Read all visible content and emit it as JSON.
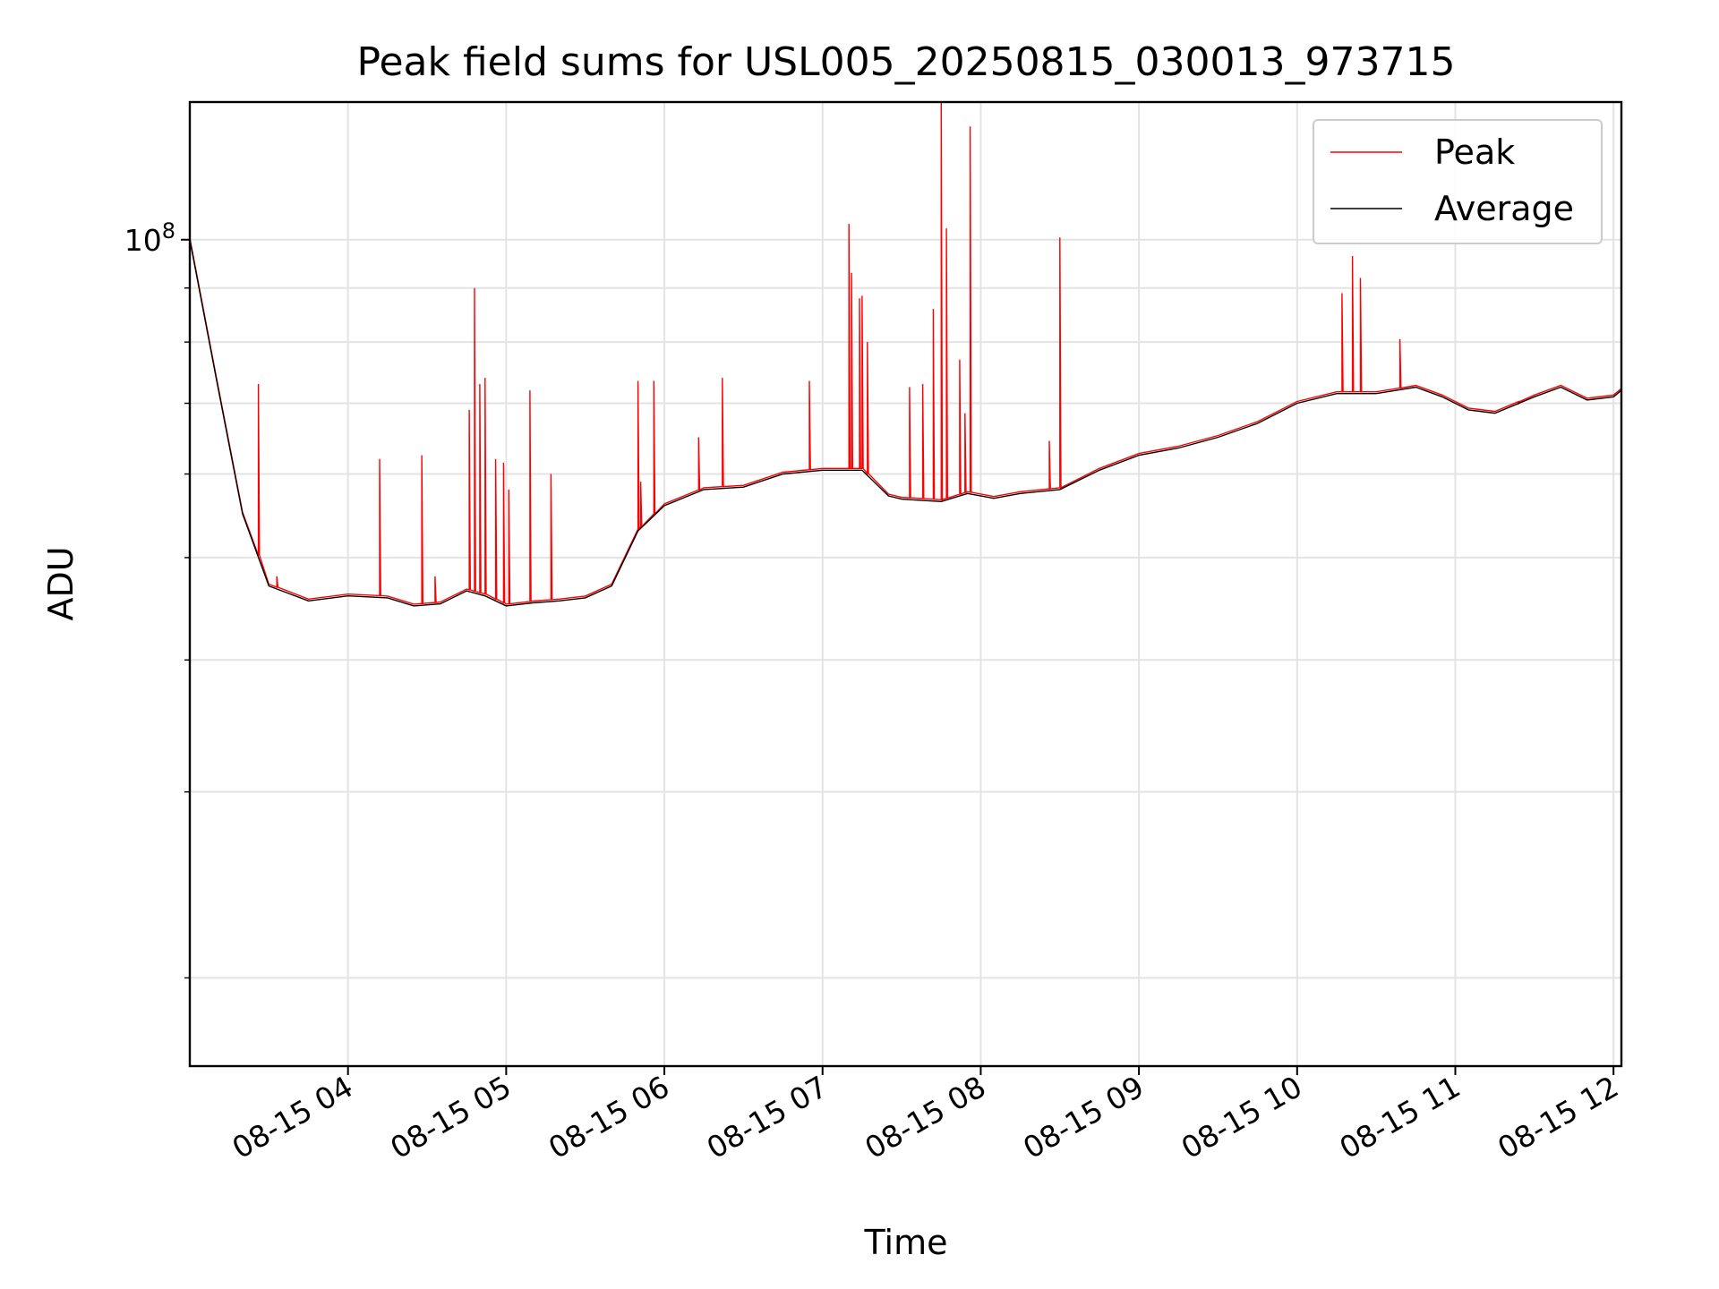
{
  "chart_data": {
    "type": "line",
    "title": "Peak field sums for USL005_20250815_030013_973715",
    "xlabel": "Time",
    "ylabel": "ADU",
    "y_scale": "log",
    "y_tick_labels": [
      {
        "base": "10",
        "exp": "8",
        "value": 100000000
      }
    ],
    "ylim": [
      16500000,
      135000000
    ],
    "xlim": [
      "08-15 03:00",
      "08-15 12:03"
    ],
    "x_ticks": [
      "08-15 04",
      "08-15 05",
      "08-15 06",
      "08-15 07",
      "08-15 08",
      "08-15 09",
      "08-15 10",
      "08-15 11",
      "08-15 12"
    ],
    "grid": true,
    "legend": {
      "placement": "top-right",
      "entries": [
        "Peak",
        "Average"
      ]
    },
    "colors": {
      "Peak": "#ff0000",
      "Average": "#000000"
    },
    "series": [
      {
        "name": "Average",
        "x": [
          "08-15 03:00",
          "08-15 03:10",
          "08-15 03:20",
          "08-15 03:30",
          "08-15 03:45",
          "08-15 04:00",
          "08-15 04:15",
          "08-15 04:25",
          "08-15 04:35",
          "08-15 04:45",
          "08-15 04:52",
          "08-15 05:00",
          "08-15 05:10",
          "08-15 05:20",
          "08-15 05:30",
          "08-15 05:40",
          "08-15 05:50",
          "08-15 06:00",
          "08-15 06:15",
          "08-15 06:30",
          "08-15 06:45",
          "08-15 07:00",
          "08-15 07:15",
          "08-15 07:25",
          "08-15 07:30",
          "08-15 07:45",
          "08-15 07:55",
          "08-15 08:05",
          "08-15 08:15",
          "08-15 08:30",
          "08-15 08:45",
          "08-15 09:00",
          "08-15 09:15",
          "08-15 09:30",
          "08-15 09:45",
          "08-15 10:00",
          "08-15 10:15",
          "08-15 10:30",
          "08-15 10:45",
          "08-15 10:55",
          "08-15 11:05",
          "08-15 11:15",
          "08-15 11:30",
          "08-15 11:40",
          "08-15 11:50",
          "08-15 12:00",
          "08-15 12:03"
        ],
        "y": [
          100000000,
          74000000,
          55000000,
          47000000,
          45500000,
          46000000,
          45800000,
          45000000,
          45200000,
          46500000,
          46000000,
          45000000,
          45300000,
          45500000,
          45800000,
          47000000,
          53000000,
          56000000,
          58000000,
          58300000,
          60000000,
          60500000,
          60500000,
          57200000,
          56800000,
          56500000,
          57500000,
          56900000,
          57500000,
          58000000,
          60500000,
          62500000,
          63500000,
          65000000,
          67000000,
          70000000,
          71500000,
          71500000,
          72500000,
          71000000,
          69000000,
          68500000,
          71000000,
          72500000,
          70500000,
          71000000,
          72000000
        ]
      },
      {
        "name": "Peak",
        "spikes": [
          {
            "x": "08-15 03:26",
            "y": 73000000
          },
          {
            "x": "08-15 03:33",
            "y": 48000000
          },
          {
            "x": "08-15 04:12",
            "y": 62000000
          },
          {
            "x": "08-15 04:28",
            "y": 62500000
          },
          {
            "x": "08-15 04:33",
            "y": 48000000
          },
          {
            "x": "08-15 04:46",
            "y": 69000000
          },
          {
            "x": "08-15 04:48",
            "y": 90000000
          },
          {
            "x": "08-15 04:50",
            "y": 73000000
          },
          {
            "x": "08-15 04:52",
            "y": 74000000
          },
          {
            "x": "08-15 04:56",
            "y": 62000000
          },
          {
            "x": "08-15 04:59",
            "y": 61500000
          },
          {
            "x": "08-15 05:01",
            "y": 58000000
          },
          {
            "x": "08-15 05:09",
            "y": 72000000
          },
          {
            "x": "08-15 05:17",
            "y": 60000000
          },
          {
            "x": "08-15 05:50",
            "y": 73500000
          },
          {
            "x": "08-15 05:51",
            "y": 59000000
          },
          {
            "x": "08-15 05:56",
            "y": 73500000
          },
          {
            "x": "08-15 06:13",
            "y": 65000000
          },
          {
            "x": "08-15 06:22",
            "y": 74000000
          },
          {
            "x": "08-15 06:55",
            "y": 73500000
          },
          {
            "x": "08-15 07:10",
            "y": 103500000
          },
          {
            "x": "08-15 07:11",
            "y": 93000000
          },
          {
            "x": "08-15 07:14",
            "y": 88000000
          },
          {
            "x": "08-15 07:15",
            "y": 88500000
          },
          {
            "x": "08-15 07:17",
            "y": 80000000
          },
          {
            "x": "08-15 07:33",
            "y": 72500000
          },
          {
            "x": "08-15 07:38",
            "y": 73000000
          },
          {
            "x": "08-15 07:42",
            "y": 86000000
          },
          {
            "x": "08-15 07:45",
            "y": 135000000
          },
          {
            "x": "08-15 07:47",
            "y": 102500000
          },
          {
            "x": "08-15 07:52",
            "y": 77000000
          },
          {
            "x": "08-15 07:54",
            "y": 68500000
          },
          {
            "x": "08-15 07:56",
            "y": 128000000
          },
          {
            "x": "08-15 08:26",
            "y": 64500000
          },
          {
            "x": "08-15 08:30",
            "y": 100500000
          },
          {
            "x": "08-15 10:17",
            "y": 89000000
          },
          {
            "x": "08-15 10:21",
            "y": 96500000
          },
          {
            "x": "08-15 10:24",
            "y": 92000000
          },
          {
            "x": "08-15 10:39",
            "y": 80500000
          },
          {
            "x": "08-15 11:24",
            "y": 70000000
          }
        ]
      }
    ]
  }
}
